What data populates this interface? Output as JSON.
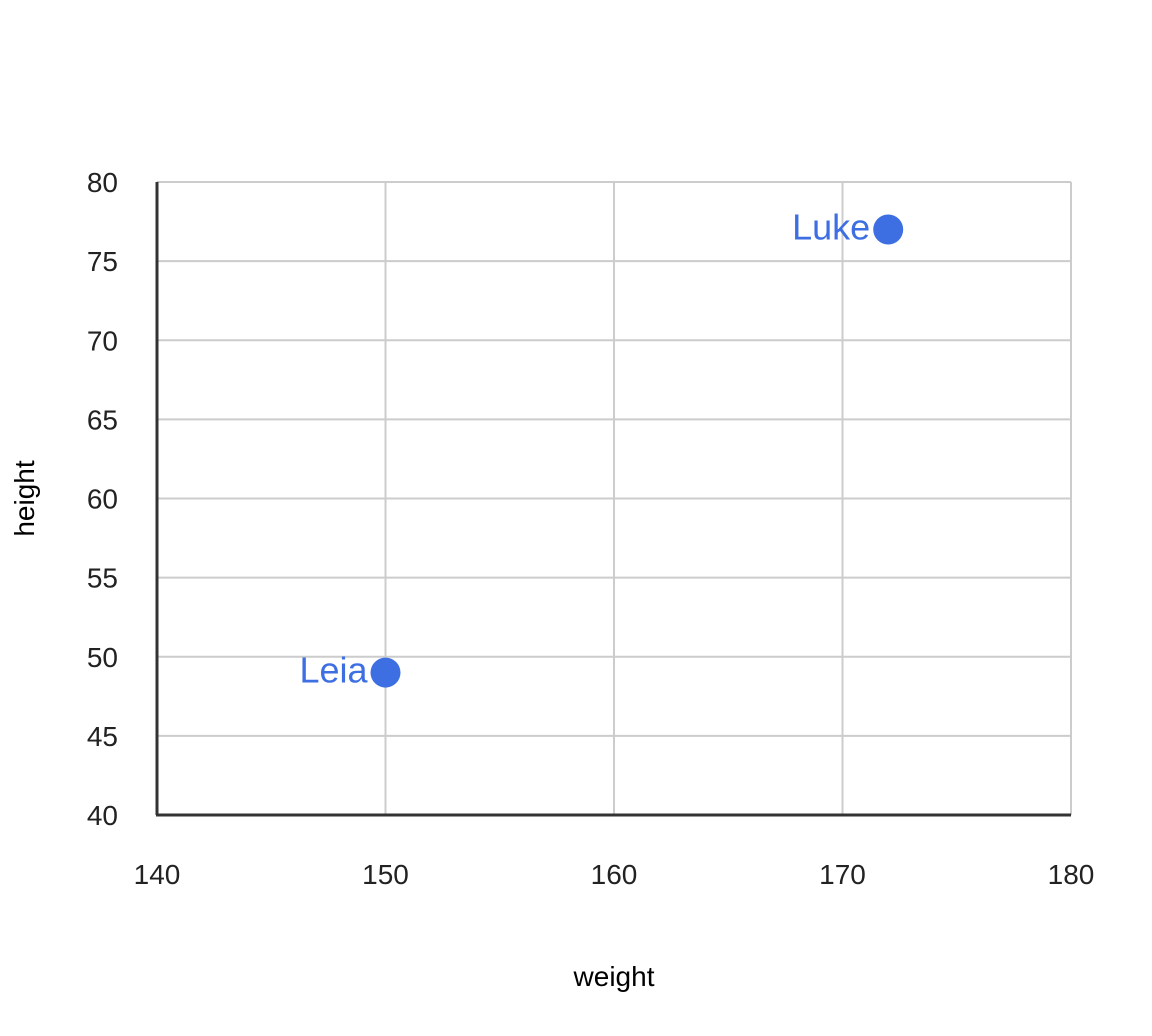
{
  "chart_data": {
    "type": "scatter",
    "title": "",
    "xlabel": "weight",
    "ylabel": "height",
    "xlim": [
      140,
      180
    ],
    "ylim": [
      40,
      80
    ],
    "x_ticks": [
      140,
      150,
      160,
      170,
      180
    ],
    "y_ticks": [
      40,
      45,
      50,
      55,
      60,
      65,
      70,
      75,
      80
    ],
    "grid": true,
    "legend": "none",
    "series": [
      {
        "color": "#3d6fe3",
        "points": [
          {
            "x": 150,
            "y": 49,
            "label": "Leia"
          },
          {
            "x": 172,
            "y": 77,
            "label": "Luke"
          }
        ]
      }
    ]
  }
}
